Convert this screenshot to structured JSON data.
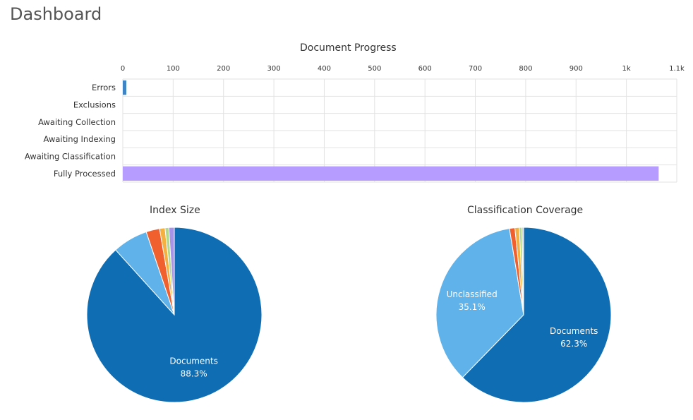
{
  "page": {
    "title": "Dashboard"
  },
  "colors": {
    "bar_errors": "#3f85c6",
    "bar_processed": "#b79cff",
    "grid": "#e2e2e2",
    "blue_dark": "#0f6db3",
    "blue_light": "#5fb3ea",
    "orange": "#f05f2e",
    "yellow": "#f5b042",
    "green": "#b2d88a",
    "purple": "#a793e8",
    "gray": "#c9c9c9"
  },
  "chart_data": [
    {
      "id": "document-progress",
      "type": "bar",
      "orientation": "horizontal",
      "title": "Document Progress",
      "categories": [
        "Errors",
        "Exclusions",
        "Awaiting Collection",
        "Awaiting Indexing",
        "Awaiting Classification",
        "Fully Processed"
      ],
      "values": [
        7,
        0,
        0,
        0,
        0,
        1064
      ],
      "xlim": [
        0,
        1100
      ],
      "ticks": [
        0,
        100,
        200,
        300,
        400,
        500,
        600,
        700,
        800,
        900,
        1000,
        1100
      ],
      "tick_labels": [
        "0",
        "100",
        "200",
        "300",
        "400",
        "500",
        "600",
        "700",
        "800",
        "900",
        "1k",
        "1.1k"
      ],
      "grid": true
    },
    {
      "id": "index-size",
      "type": "pie",
      "title": "Index Size",
      "slices": [
        {
          "label": "Documents",
          "value": 88.3,
          "pct_label": "88.3%",
          "show_label": true,
          "color": "#0f6db3"
        },
        {
          "label": "",
          "value": 6.5,
          "show_label": false,
          "color": "#5fb3ea"
        },
        {
          "label": "",
          "value": 2.5,
          "show_label": false,
          "color": "#f05f2e"
        },
        {
          "label": "",
          "value": 1.0,
          "show_label": false,
          "color": "#f5b042"
        },
        {
          "label": "",
          "value": 0.7,
          "show_label": false,
          "color": "#b2d88a"
        },
        {
          "label": "",
          "value": 1.0,
          "show_label": false,
          "color": "#a793e8"
        }
      ]
    },
    {
      "id": "classification-coverage",
      "type": "pie",
      "title": "Classification Coverage",
      "slices": [
        {
          "label": "Documents",
          "value": 62.3,
          "pct_label": "62.3%",
          "show_label": true,
          "color": "#0f6db3"
        },
        {
          "label": "Unclassified",
          "value": 35.1,
          "pct_label": "35.1%",
          "show_label": true,
          "color": "#5fb3ea"
        },
        {
          "label": "",
          "value": 1.0,
          "show_label": false,
          "color": "#f05f2e"
        },
        {
          "label": "",
          "value": 0.8,
          "show_label": false,
          "color": "#f5b042"
        },
        {
          "label": "",
          "value": 0.5,
          "show_label": false,
          "color": "#b2d88a"
        },
        {
          "label": "",
          "value": 0.3,
          "show_label": false,
          "color": "#c9c9c9"
        }
      ]
    }
  ]
}
